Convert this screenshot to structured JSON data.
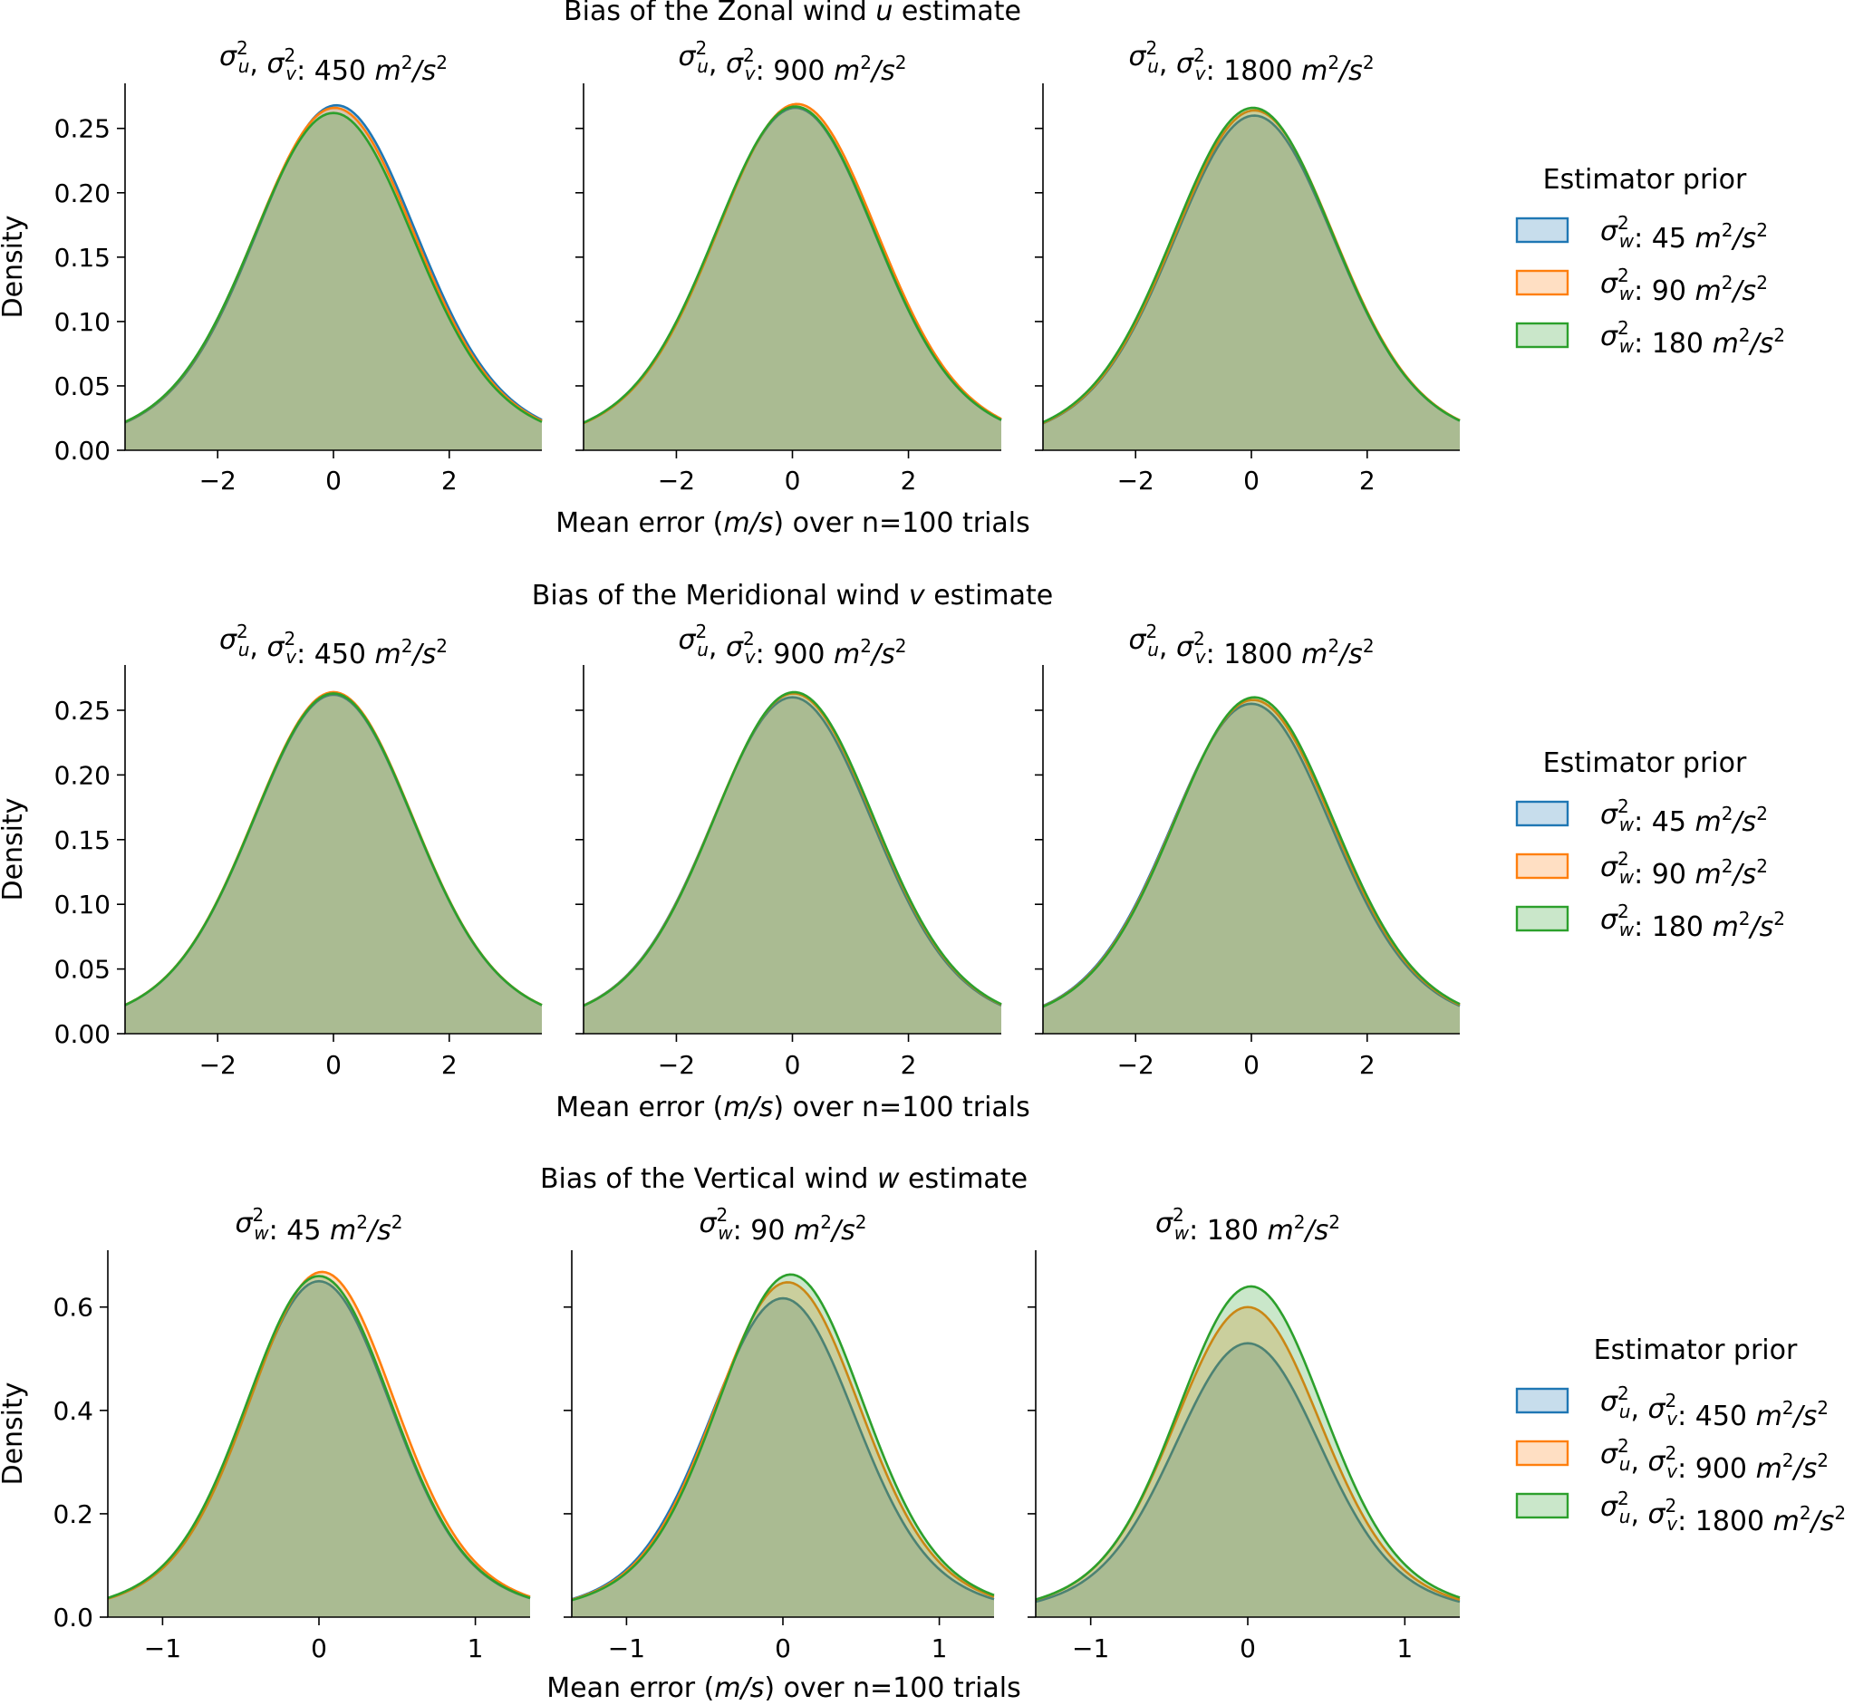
{
  "chart_data": [
    {
      "type": "area",
      "row_title": "Bias of the Zonal wind u estimate",
      "row_title_parts": [
        "Bias of the Zonal wind ",
        "u",
        " estimate"
      ],
      "xlabel": "Mean error (m/s) over n=100 trials",
      "xlabel_parts": [
        "Mean error (",
        "m/s",
        ") over n=100 trials"
      ],
      "ylabel": "Density",
      "xlim": [
        -3.6,
        3.6
      ],
      "ylim": [
        0,
        0.285
      ],
      "xticks": [
        -2,
        0,
        2
      ],
      "xtick_labels": [
        "−2",
        "0",
        "2"
      ],
      "yticks": [
        0,
        0.05,
        0.1,
        0.15,
        0.2,
        0.25
      ],
      "ytick_labels": [
        "0.00",
        "0.05",
        "0.10",
        "0.15",
        "0.20",
        "0.25"
      ],
      "legend": {
        "title": "Estimator prior",
        "labels": [
          "σ²w: 45 m²/s²",
          "σ²w: 90 m²/s²",
          "σ²w: 180 m²/s²"
        ],
        "kind": "w",
        "values": [
          "45",
          "90",
          "180"
        ]
      },
      "panels": [
        {
          "title": "σ²u, σ²v: 450 m²/s²",
          "title_kind": "uv",
          "title_value": "450",
          "series": [
            {
              "name": "σ²w: 45 m²/s²",
              "mu": 0.05,
              "peak": 0.268
            },
            {
              "name": "σ²w: 90 m²/s²",
              "mu": 0.02,
              "peak": 0.266
            },
            {
              "name": "σ²w: 180 m²/s²",
              "mu": 0.0,
              "peak": 0.262
            }
          ]
        },
        {
          "title": "σ²u, σ²v: 900 m²/s²",
          "title_kind": "uv",
          "title_value": "900",
          "series": [
            {
              "name": "σ²w: 45 m²/s²",
              "mu": 0.05,
              "peak": 0.266
            },
            {
              "name": "σ²w: 90 m²/s²",
              "mu": 0.08,
              "peak": 0.269
            },
            {
              "name": "σ²w: 180 m²/s²",
              "mu": 0.05,
              "peak": 0.267
            }
          ]
        },
        {
          "title": "σ²u, σ²v: 1800 m²/s²",
          "title_kind": "uv",
          "title_value": "1800",
          "series": [
            {
              "name": "σ²w: 45 m²/s²",
              "mu": 0.05,
              "peak": 0.26
            },
            {
              "name": "σ²w: 90 m²/s²",
              "mu": 0.05,
              "peak": 0.264
            },
            {
              "name": "σ²w: 180 m²/s²",
              "mu": 0.03,
              "peak": 0.266
            }
          ]
        }
      ]
    },
    {
      "type": "area",
      "row_title": "Bias of the Meridional wind v estimate",
      "row_title_parts": [
        "Bias of the Meridional wind ",
        "v",
        " estimate"
      ],
      "xlabel": "Mean error (m/s) over n=100 trials",
      "xlabel_parts": [
        "Mean error (",
        "m/s",
        ") over n=100 trials"
      ],
      "ylabel": "Density",
      "xlim": [
        -3.6,
        3.6
      ],
      "ylim": [
        0,
        0.285
      ],
      "xticks": [
        -2,
        0,
        2
      ],
      "xtick_labels": [
        "−2",
        "0",
        "2"
      ],
      "yticks": [
        0,
        0.05,
        0.1,
        0.15,
        0.2,
        0.25
      ],
      "ytick_labels": [
        "0.00",
        "0.05",
        "0.10",
        "0.15",
        "0.20",
        "0.25"
      ],
      "legend": {
        "title": "Estimator prior",
        "labels": [
          "σ²w: 45 m²/s²",
          "σ²w: 90 m²/s²",
          "σ²w: 180 m²/s²"
        ],
        "kind": "w",
        "values": [
          "45",
          "90",
          "180"
        ]
      },
      "panels": [
        {
          "title": "σ²u, σ²v: 450 m²/s²",
          "title_kind": "uv",
          "title_value": "450",
          "series": [
            {
              "name": "σ²w: 45 m²/s²",
              "mu": 0.0,
              "peak": 0.262
            },
            {
              "name": "σ²w: 90 m²/s²",
              "mu": 0.0,
              "peak": 0.264
            },
            {
              "name": "σ²w: 180 m²/s²",
              "mu": 0.0,
              "peak": 0.263
            }
          ]
        },
        {
          "title": "σ²u, σ²v: 900 m²/s²",
          "title_kind": "uv",
          "title_value": "900",
          "series": [
            {
              "name": "σ²w: 45 m²/s²",
              "mu": 0.0,
              "peak": 0.26
            },
            {
              "name": "σ²w: 90 m²/s²",
              "mu": 0.02,
              "peak": 0.263
            },
            {
              "name": "σ²w: 180 m²/s²",
              "mu": 0.03,
              "peak": 0.264
            }
          ]
        },
        {
          "title": "σ²u, σ²v: 1800 m²/s²",
          "title_kind": "uv",
          "title_value": "1800",
          "series": [
            {
              "name": "σ²w: 45 m²/s²",
              "mu": 0.0,
              "peak": 0.255
            },
            {
              "name": "σ²w: 90 m²/s²",
              "mu": 0.03,
              "peak": 0.258
            },
            {
              "name": "σ²w: 180 m²/s²",
              "mu": 0.05,
              "peak": 0.26
            }
          ]
        }
      ]
    },
    {
      "type": "area",
      "row_title": "Bias of the Vertical wind w estimate",
      "row_title_parts": [
        "Bias of the Vertical wind ",
        "w",
        " estimate"
      ],
      "xlabel": "Mean error (m/s) over n=100 trials",
      "xlabel_parts": [
        "Mean error (",
        "m/s",
        ") over n=100 trials"
      ],
      "ylabel": "Density",
      "xlim": [
        -1.35,
        1.35
      ],
      "ylim": [
        0,
        0.71
      ],
      "xticks": [
        -1,
        0,
        1
      ],
      "xtick_labels": [
        "−1",
        "0",
        "1"
      ],
      "yticks": [
        0,
        0.2,
        0.4,
        0.6
      ],
      "ytick_labels": [
        "0.0",
        "0.2",
        "0.4",
        "0.6"
      ],
      "legend": {
        "title": "Estimator prior",
        "labels": [
          "σ²u, σ²v: 450 m²/s²",
          "σ²u, σ²v: 900 m²/s²",
          "σ²u, σ²v: 1800 m²/s²"
        ],
        "kind": "uv",
        "values": [
          "450",
          "900",
          "1800"
        ]
      },
      "panels": [
        {
          "title": "σ²w: 45 m²/s²",
          "title_kind": "w",
          "title_value": "45",
          "series": [
            {
              "name": "σ²u, σ²v: 450 m²/s²",
              "mu": 0.0,
              "peak": 0.65
            },
            {
              "name": "σ²u, σ²v: 900 m²/s²",
              "mu": 0.02,
              "peak": 0.668
            },
            {
              "name": "σ²u, σ²v: 1800 m²/s²",
              "mu": 0.0,
              "peak": 0.66
            }
          ]
        },
        {
          "title": "σ²w: 90 m²/s²",
          "title_kind": "w",
          "title_value": "90",
          "series": [
            {
              "name": "σ²u, σ²v: 450 m²/s²",
              "mu": 0.0,
              "peak": 0.617
            },
            {
              "name": "σ²u, σ²v: 900 m²/s²",
              "mu": 0.03,
              "peak": 0.648
            },
            {
              "name": "σ²u, σ²v: 1800 m²/s²",
              "mu": 0.05,
              "peak": 0.663
            }
          ]
        },
        {
          "title": "σ²w: 180 m²/s²",
          "title_kind": "w",
          "title_value": "180",
          "series": [
            {
              "name": "σ²u, σ²v: 450 m²/s²",
              "mu": 0.0,
              "peak": 0.53
            },
            {
              "name": "σ²u, σ²v: 900 m²/s²",
              "mu": 0.0,
              "peak": 0.6
            },
            {
              "name": "σ²u, σ²v: 1800 m²/s²",
              "mu": 0.02,
              "peak": 0.64
            }
          ]
        }
      ]
    }
  ],
  "colors": {
    "series": [
      "#1f77b4",
      "#ff7f0e",
      "#2ca02c"
    ],
    "fill_opacity": 0.25
  }
}
